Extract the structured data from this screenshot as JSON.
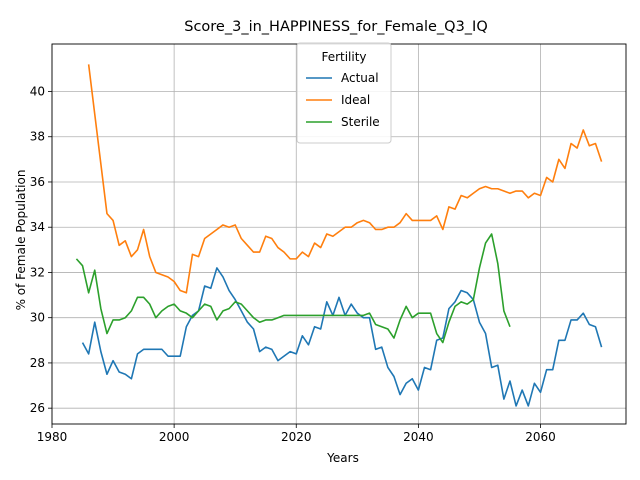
{
  "chart_data": {
    "type": "line",
    "title": "Score_3_in_HAPPINESS_for_Female_Q3_IQ",
    "xlabel": "Years",
    "ylabel": "% of Female Population",
    "xlim": [
      1980,
      2074
    ],
    "ylim": [
      25.3,
      42.1
    ],
    "x_ticks": [
      1980,
      2000,
      2020,
      2040,
      2060
    ],
    "y_ticks": [
      26,
      28,
      30,
      32,
      34,
      36,
      38,
      40
    ],
    "grid": true,
    "legend": {
      "title": "Fertility",
      "placement": "upper center"
    },
    "series": [
      {
        "name": "Actual",
        "color": "#1f77b4",
        "points": [
          [
            1985,
            28.9
          ],
          [
            1986,
            28.4
          ],
          [
            1987,
            29.8
          ],
          [
            1988,
            28.5
          ],
          [
            1989,
            27.5
          ],
          [
            1990,
            28.1
          ],
          [
            1991,
            27.6
          ],
          [
            1992,
            27.5
          ],
          [
            1993,
            27.3
          ],
          [
            1994,
            28.4
          ],
          [
            1995,
            28.6
          ],
          [
            1996,
            28.6
          ],
          [
            1997,
            28.6
          ],
          [
            1998,
            28.6
          ],
          [
            1999,
            28.3
          ],
          [
            2000,
            28.3
          ],
          [
            2001,
            28.3
          ],
          [
            2002,
            29.6
          ],
          [
            2003,
            30.1
          ],
          [
            2004,
            30.3
          ],
          [
            2005,
            31.4
          ],
          [
            2006,
            31.3
          ],
          [
            2007,
            32.2
          ],
          [
            2008,
            31.8
          ],
          [
            2009,
            31.2
          ],
          [
            2010,
            30.8
          ],
          [
            2011,
            30.3
          ],
          [
            2012,
            29.8
          ],
          [
            2013,
            29.5
          ],
          [
            2014,
            28.5
          ],
          [
            2015,
            28.7
          ],
          [
            2016,
            28.6
          ],
          [
            2017,
            28.1
          ],
          [
            2018,
            28.3
          ],
          [
            2019,
            28.5
          ],
          [
            2020,
            28.4
          ],
          [
            2021,
            29.2
          ],
          [
            2022,
            28.8
          ],
          [
            2023,
            29.6
          ],
          [
            2024,
            29.5
          ],
          [
            2025,
            30.7
          ],
          [
            2026,
            30.1
          ],
          [
            2027,
            30.9
          ],
          [
            2028,
            30.1
          ],
          [
            2029,
            30.6
          ],
          [
            2030,
            30.2
          ],
          [
            2031,
            30.0
          ],
          [
            2032,
            30.0
          ],
          [
            2033,
            28.6
          ],
          [
            2034,
            28.7
          ],
          [
            2035,
            27.8
          ],
          [
            2036,
            27.4
          ],
          [
            2037,
            26.6
          ],
          [
            2038,
            27.1
          ],
          [
            2039,
            27.3
          ],
          [
            2040,
            26.8
          ],
          [
            2041,
            27.8
          ],
          [
            2042,
            27.7
          ],
          [
            2043,
            29.0
          ],
          [
            2044,
            29.1
          ],
          [
            2045,
            30.4
          ],
          [
            2046,
            30.7
          ],
          [
            2047,
            31.2
          ],
          [
            2048,
            31.1
          ],
          [
            2049,
            30.8
          ],
          [
            2050,
            29.8
          ],
          [
            2051,
            29.3
          ],
          [
            2052,
            27.8
          ],
          [
            2053,
            27.9
          ],
          [
            2054,
            26.4
          ],
          [
            2055,
            27.2
          ],
          [
            2056,
            26.1
          ],
          [
            2057,
            26.8
          ],
          [
            2058,
            26.1
          ],
          [
            2059,
            27.1
          ],
          [
            2060,
            26.7
          ],
          [
            2061,
            27.7
          ],
          [
            2062,
            27.7
          ],
          [
            2063,
            29.0
          ],
          [
            2064,
            29.0
          ],
          [
            2065,
            29.9
          ],
          [
            2066,
            29.9
          ],
          [
            2067,
            30.2
          ],
          [
            2068,
            29.7
          ],
          [
            2069,
            29.6
          ],
          [
            2070,
            28.7
          ]
        ]
      },
      {
        "name": "Ideal",
        "color": "#ff7f0e",
        "points": [
          [
            1986,
            41.2
          ],
          [
            1987,
            39.0
          ],
          [
            1988,
            36.8
          ],
          [
            1989,
            34.6
          ],
          [
            1990,
            34.3
          ],
          [
            1991,
            33.2
          ],
          [
            1992,
            33.4
          ],
          [
            1993,
            32.7
          ],
          [
            1994,
            33.0
          ],
          [
            1995,
            33.9
          ],
          [
            1996,
            32.7
          ],
          [
            1997,
            32.0
          ],
          [
            1998,
            31.9
          ],
          [
            1999,
            31.8
          ],
          [
            2000,
            31.6
          ],
          [
            2001,
            31.2
          ],
          [
            2002,
            31.1
          ],
          [
            2003,
            32.8
          ],
          [
            2004,
            32.7
          ],
          [
            2005,
            33.5
          ],
          [
            2006,
            33.7
          ],
          [
            2007,
            33.9
          ],
          [
            2008,
            34.1
          ],
          [
            2009,
            34.0
          ],
          [
            2010,
            34.1
          ],
          [
            2011,
            33.5
          ],
          [
            2012,
            33.2
          ],
          [
            2013,
            32.9
          ],
          [
            2014,
            32.9
          ],
          [
            2015,
            33.6
          ],
          [
            2016,
            33.5
          ],
          [
            2017,
            33.1
          ],
          [
            2018,
            32.9
          ],
          [
            2019,
            32.6
          ],
          [
            2020,
            32.6
          ],
          [
            2021,
            32.9
          ],
          [
            2022,
            32.7
          ],
          [
            2023,
            33.3
          ],
          [
            2024,
            33.1
          ],
          [
            2025,
            33.7
          ],
          [
            2026,
            33.6
          ],
          [
            2027,
            33.8
          ],
          [
            2028,
            34.0
          ],
          [
            2029,
            34.0
          ],
          [
            2030,
            34.2
          ],
          [
            2031,
            34.3
          ],
          [
            2032,
            34.2
          ],
          [
            2033,
            33.9
          ],
          [
            2034,
            33.9
          ],
          [
            2035,
            34.0
          ],
          [
            2036,
            34.0
          ],
          [
            2037,
            34.2
          ],
          [
            2038,
            34.6
          ],
          [
            2039,
            34.3
          ],
          [
            2040,
            34.3
          ],
          [
            2041,
            34.3
          ],
          [
            2042,
            34.3
          ],
          [
            2043,
            34.5
          ],
          [
            2044,
            33.9
          ],
          [
            2045,
            34.9
          ],
          [
            2046,
            34.8
          ],
          [
            2047,
            35.4
          ],
          [
            2048,
            35.3
          ],
          [
            2049,
            35.5
          ],
          [
            2050,
            35.7
          ],
          [
            2051,
            35.8
          ],
          [
            2052,
            35.7
          ],
          [
            2053,
            35.7
          ],
          [
            2054,
            35.6
          ],
          [
            2055,
            35.5
          ],
          [
            2056,
            35.6
          ],
          [
            2057,
            35.6
          ],
          [
            2058,
            35.3
          ],
          [
            2059,
            35.5
          ],
          [
            2060,
            35.4
          ],
          [
            2061,
            36.2
          ],
          [
            2062,
            36.0
          ],
          [
            2063,
            37.0
          ],
          [
            2064,
            36.6
          ],
          [
            2065,
            37.7
          ],
          [
            2066,
            37.5
          ],
          [
            2067,
            38.3
          ],
          [
            2068,
            37.6
          ],
          [
            2069,
            37.7
          ],
          [
            2070,
            36.9
          ]
        ]
      },
      {
        "name": "Sterile",
        "color": "#2ca02c",
        "points": [
          [
            1984,
            32.6
          ],
          [
            1985,
            32.3
          ],
          [
            1986,
            31.1
          ],
          [
            1987,
            32.1
          ],
          [
            1988,
            30.4
          ],
          [
            1989,
            29.3
          ],
          [
            1990,
            29.9
          ],
          [
            1991,
            29.9
          ],
          [
            1992,
            30.0
          ],
          [
            1993,
            30.3
          ],
          [
            1994,
            30.9
          ],
          [
            1995,
            30.9
          ],
          [
            1996,
            30.6
          ],
          [
            1997,
            30.0
          ],
          [
            1998,
            30.3
          ],
          [
            1999,
            30.5
          ],
          [
            2000,
            30.6
          ],
          [
            2001,
            30.3
          ],
          [
            2002,
            30.2
          ],
          [
            2003,
            30.0
          ],
          [
            2004,
            30.3
          ],
          [
            2005,
            30.6
          ],
          [
            2006,
            30.5
          ],
          [
            2007,
            29.9
          ],
          [
            2008,
            30.3
          ],
          [
            2009,
            30.4
          ],
          [
            2010,
            30.7
          ],
          [
            2011,
            30.6
          ],
          [
            2012,
            30.3
          ],
          [
            2013,
            30.0
          ],
          [
            2014,
            29.8
          ],
          [
            2015,
            29.9
          ],
          [
            2016,
            29.9
          ],
          [
            2017,
            30.0
          ],
          [
            2018,
            30.1
          ],
          [
            2019,
            30.1
          ],
          [
            2020,
            30.1
          ],
          [
            2021,
            30.1
          ],
          [
            2022,
            30.1
          ],
          [
            2023,
            30.1
          ],
          [
            2024,
            30.1
          ],
          [
            2025,
            30.1
          ],
          [
            2026,
            30.1
          ],
          [
            2027,
            30.1
          ],
          [
            2028,
            30.1
          ],
          [
            2029,
            30.1
          ],
          [
            2030,
            30.1
          ],
          [
            2031,
            30.1
          ],
          [
            2032,
            30.2
          ],
          [
            2033,
            29.7
          ],
          [
            2034,
            29.6
          ],
          [
            2035,
            29.5
          ],
          [
            2036,
            29.1
          ],
          [
            2037,
            29.9
          ],
          [
            2038,
            30.5
          ],
          [
            2039,
            30.0
          ],
          [
            2040,
            30.2
          ],
          [
            2041,
            30.2
          ],
          [
            2042,
            30.2
          ],
          [
            2043,
            29.3
          ],
          [
            2044,
            28.9
          ],
          [
            2045,
            29.8
          ],
          [
            2046,
            30.5
          ],
          [
            2047,
            30.7
          ],
          [
            2048,
            30.6
          ],
          [
            2049,
            30.8
          ],
          [
            2050,
            32.2
          ],
          [
            2051,
            33.3
          ],
          [
            2052,
            33.7
          ],
          [
            2053,
            32.4
          ],
          [
            2054,
            30.3
          ],
          [
            2055,
            29.6
          ]
        ]
      }
    ]
  }
}
